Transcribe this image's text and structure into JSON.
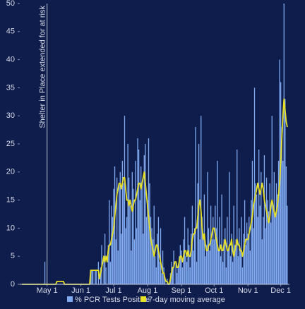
{
  "chart_data": {
    "type": "bar",
    "x": [
      99,
      100,
      101,
      102,
      103,
      104,
      105,
      106,
      107,
      108,
      109,
      110,
      111,
      112,
      113,
      114,
      115,
      116,
      117,
      118,
      119,
      120,
      121,
      122,
      123,
      124,
      125,
      126,
      127,
      128,
      129,
      130,
      131,
      132,
      133,
      134,
      135,
      136,
      137,
      138,
      139,
      140,
      141,
      142,
      143,
      144,
      145,
      146,
      147,
      148,
      149,
      150,
      151,
      152,
      153,
      154,
      155,
      156,
      157,
      158,
      159,
      160,
      161,
      162,
      163,
      164,
      165,
      166,
      167,
      168,
      169,
      170,
      171,
      172,
      173,
      174,
      175,
      176,
      177,
      178,
      179,
      180,
      181,
      182,
      183,
      184,
      185,
      186,
      187,
      188,
      189,
      190,
      191,
      192,
      193,
      194,
      195,
      196,
      197,
      198,
      199,
      200,
      201,
      202,
      203,
      204,
      205,
      206,
      207,
      208,
      209,
      210,
      211,
      212,
      213,
      214,
      215,
      216,
      217,
      218,
      219,
      220,
      221,
      222,
      223,
      224,
      225,
      226,
      227,
      228,
      229,
      230,
      231,
      232,
      233,
      234,
      235,
      236,
      237,
      238,
      239,
      240,
      241,
      242,
      243,
      244,
      245,
      246,
      247,
      248,
      249,
      250,
      251,
      252,
      253,
      254,
      255,
      256,
      257,
      258,
      259,
      260,
      261,
      262,
      263,
      264,
      265,
      266,
      267,
      268,
      269,
      270,
      271,
      272,
      273,
      274,
      275,
      276,
      277,
      278,
      279,
      280,
      281,
      282,
      283,
      284,
      285,
      286,
      287,
      288,
      289,
      290,
      291,
      292,
      293,
      294,
      295,
      296,
      297,
      298,
      299,
      300,
      301,
      302,
      303,
      304,
      305,
      306,
      307,
      308,
      309,
      310,
      311,
      312,
      313,
      314,
      315,
      316,
      317,
      318,
      319,
      320,
      321,
      322,
      323,
      324,
      325,
      326,
      327,
      328,
      329,
      330,
      331,
      332,
      333,
      334,
      335,
      336,
      337,
      338,
      339,
      340,
      341,
      342
    ],
    "xlim": [
      97,
      344
    ],
    "xticks": [
      {
        "value": 122,
        "label": "May 1"
      },
      {
        "value": 153,
        "label": "Jun 1"
      },
      {
        "value": 183,
        "label": "Jul 1"
      },
      {
        "value": 214,
        "label": "Aug 1"
      },
      {
        "value": 245,
        "label": "Sep 1"
      },
      {
        "value": 275,
        "label": "Oct 1"
      },
      {
        "value": 306,
        "label": "Nov 1"
      },
      {
        "value": 336,
        "label": "Dec 1"
      }
    ],
    "ylim": [
      0,
      50
    ],
    "yticks": [
      0,
      5,
      10,
      15,
      20,
      25,
      30,
      35,
      40,
      45,
      50
    ],
    "grid": false,
    "legend": "bottom",
    "annotation": {
      "text": "Shelter in Place extended for at risk",
      "x": 122
    },
    "series": [
      {
        "name": "% PCR Tests Positive",
        "type": "bar",
        "color": "#7fa9f0",
        "values": [
          0,
          0,
          0,
          0,
          0,
          0,
          0,
          0,
          0,
          0,
          0,
          0,
          0,
          0,
          0,
          0,
          0,
          0,
          0,
          0,
          0,
          4,
          0,
          0,
          0,
          0,
          0,
          0,
          0,
          0,
          0,
          0,
          0,
          0,
          0,
          0,
          0,
          0,
          0,
          0,
          0,
          0,
          0,
          0,
          0,
          0,
          0,
          0,
          0,
          0,
          0,
          0,
          0,
          0,
          0,
          0,
          0,
          0,
          0,
          0,
          0,
          0,
          0,
          2.5,
          2.5,
          2.5,
          0,
          2.5,
          2.5,
          0,
          4,
          0,
          3,
          7,
          0,
          5,
          9,
          3,
          0,
          7,
          15,
          4,
          14,
          12,
          17,
          21,
          8,
          19,
          6,
          18,
          20,
          9,
          22,
          18,
          30,
          10,
          12,
          25,
          19,
          14,
          6,
          20,
          17,
          8,
          22,
          10,
          26,
          24,
          15,
          21,
          18,
          9,
          23,
          25,
          12,
          15,
          26,
          18,
          12,
          10,
          8,
          14,
          5,
          3,
          9,
          12,
          4,
          10,
          2,
          6,
          3,
          1,
          0,
          1,
          0,
          0,
          2,
          4,
          3,
          6,
          0,
          4,
          2,
          3,
          5,
          7,
          6,
          3,
          8,
          12,
          5,
          4,
          10,
          7,
          3,
          9,
          14,
          6,
          10,
          28,
          4,
          18,
          25,
          8,
          30,
          12,
          9,
          16,
          5,
          7,
          20,
          10,
          6,
          14,
          8,
          12,
          8,
          14,
          10,
          22,
          6,
          12,
          5,
          16,
          4,
          8,
          10,
          3,
          12,
          6,
          20,
          5,
          9,
          4,
          14,
          7,
          8,
          24,
          5,
          10,
          6,
          12,
          3,
          9,
          15,
          7,
          11,
          9,
          12,
          6,
          15,
          22,
          10,
          35,
          18,
          16,
          12,
          24,
          14,
          20,
          8,
          12,
          23,
          10,
          19,
          15,
          13,
          18,
          11,
          30,
          14,
          20,
          12,
          18,
          16,
          22,
          40,
          36,
          28,
          22,
          50,
          33,
          21,
          14
        ]
      },
      {
        "name": "7-day moving average",
        "type": "line",
        "color": "#e8e025",
        "values": [
          0,
          0,
          0,
          0,
          0,
          0,
          0,
          0,
          0,
          0,
          0,
          0,
          0,
          0,
          0,
          0,
          0,
          0,
          0,
          0,
          0,
          0,
          0,
          0,
          0,
          0,
          0,
          0,
          0,
          0,
          0,
          0,
          0.5,
          0.5,
          0.5,
          0.5,
          0.5,
          0.5,
          0.5,
          0,
          0,
          0,
          0,
          0,
          0,
          0,
          0,
          0,
          0,
          0,
          0,
          0,
          0,
          0,
          0,
          0,
          0,
          0,
          0,
          0,
          0,
          0,
          0,
          2.5,
          2.5,
          2.5,
          2.5,
          2.5,
          2.5,
          2.5,
          2.5,
          1,
          2,
          3,
          4,
          5,
          4,
          5,
          4,
          6,
          7,
          7,
          8,
          9,
          10,
          12,
          14,
          16,
          17,
          18,
          18,
          17,
          18,
          19,
          19,
          17,
          15,
          15,
          14,
          15,
          14,
          13,
          14,
          15,
          15,
          16,
          17,
          18,
          18,
          17,
          18,
          19,
          20,
          18,
          16,
          14,
          12,
          10,
          8,
          7,
          6,
          5,
          6,
          7,
          7,
          6,
          5,
          4,
          3,
          2,
          2,
          1,
          0.5,
          0.5,
          0,
          0,
          1,
          2,
          3,
          3,
          4,
          4,
          3,
          3,
          4,
          5,
          5,
          4,
          5,
          6,
          6,
          5,
          6,
          5,
          5,
          6,
          8,
          9,
          9,
          10,
          10,
          12,
          14,
          15,
          13,
          10,
          8,
          9,
          7,
          6,
          6,
          7,
          7,
          8,
          9,
          10,
          10,
          9,
          8,
          7,
          6,
          6,
          7,
          6,
          6,
          7,
          8,
          7,
          6,
          6,
          7,
          7,
          8,
          6,
          5,
          6,
          7,
          8,
          7,
          7,
          6,
          6,
          5,
          6,
          7,
          8,
          8,
          8,
          9,
          10,
          11,
          12,
          14,
          15,
          16,
          17,
          18,
          17,
          16,
          17,
          18,
          17,
          15,
          14,
          13,
          12,
          11,
          12,
          14,
          15,
          14,
          13,
          12,
          13,
          14,
          16,
          18,
          22,
          26,
          30,
          33,
          31,
          29,
          28
        ]
      }
    ]
  }
}
